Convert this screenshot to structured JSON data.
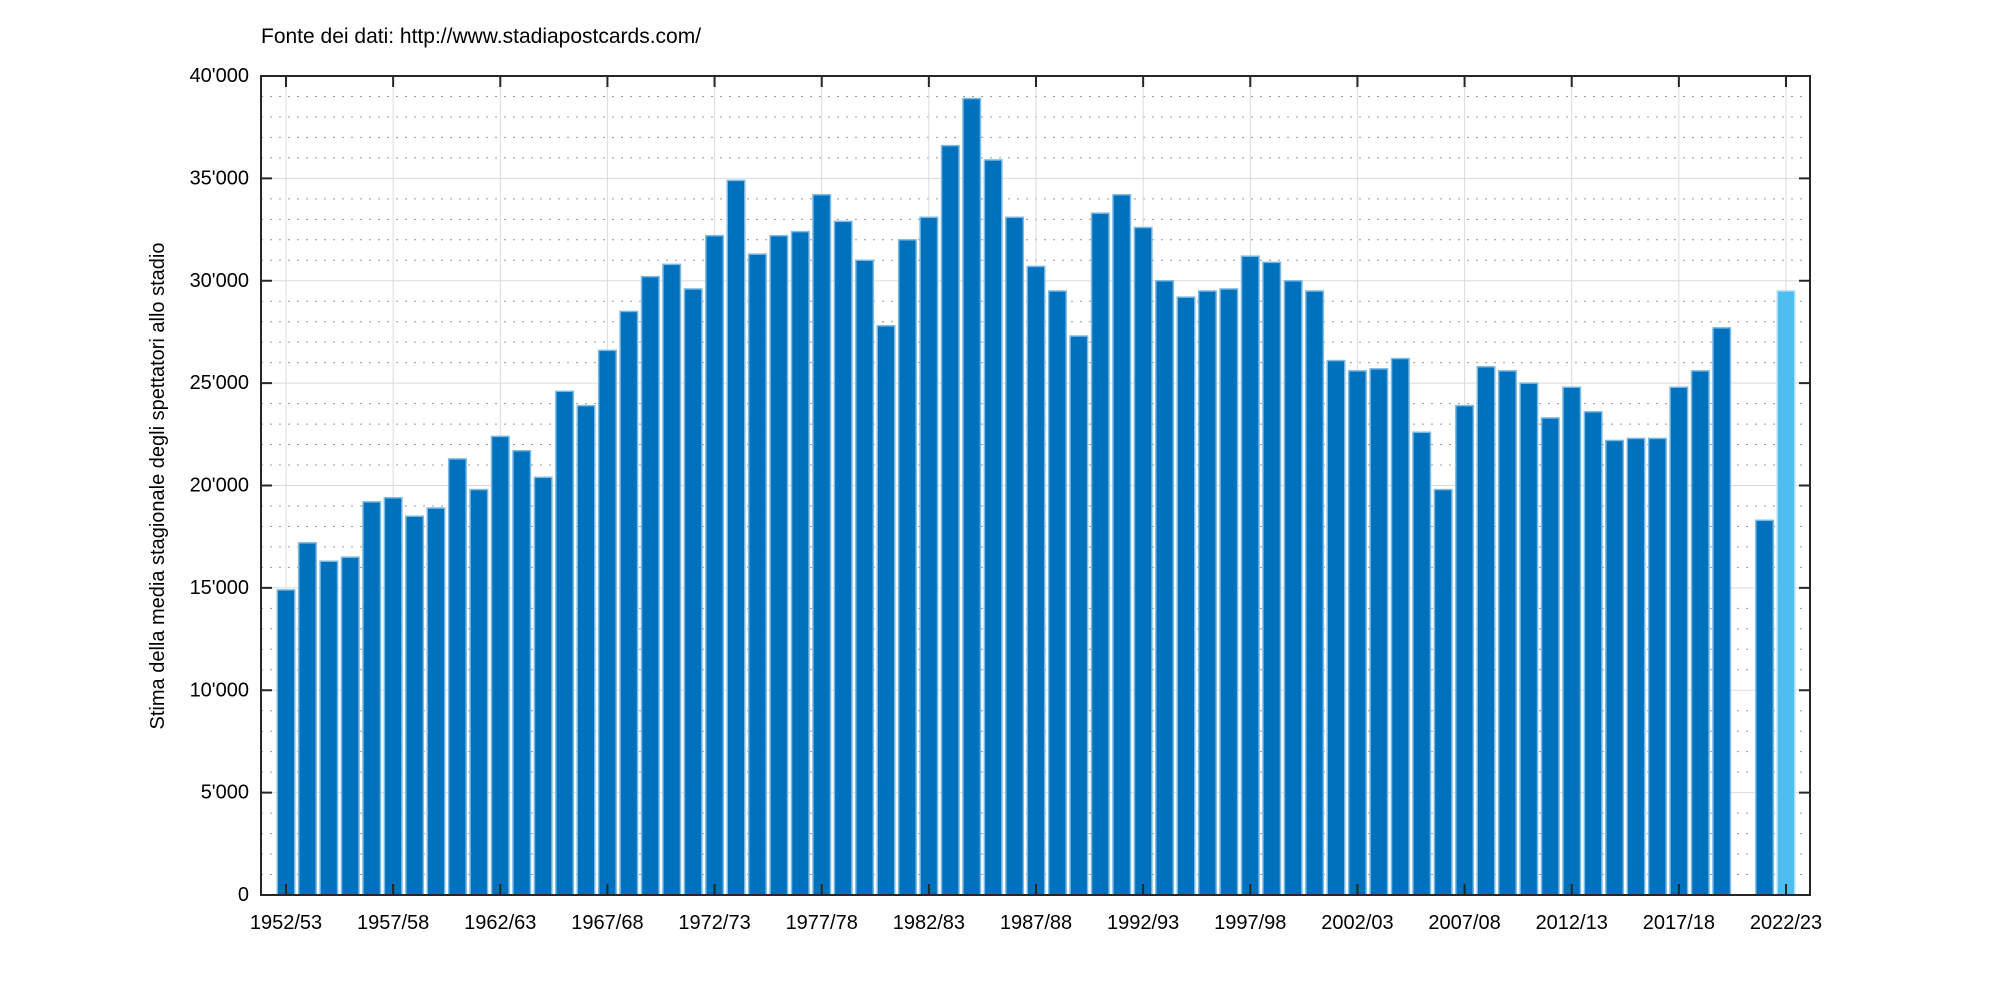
{
  "figure": {
    "background": "#FFFFFF",
    "kind": "matlab-style bar chart screenshot"
  },
  "chart_data": {
    "type": "bar",
    "title": "Fonte dei dati: http://www.stadiapostcards.com/",
    "xlabel": "",
    "ylabel": "Stima della media stagionale degli spettatori allo stadio",
    "ylim": [
      0,
      40000
    ],
    "ytick_interval": 5000,
    "yminor_interval": 1000,
    "ytick_labels": [
      "0",
      "5'000",
      "10'000",
      "15'000",
      "20'000",
      "25'000",
      "30'000",
      "35'000",
      "40'000"
    ],
    "xtick_every": 5,
    "xtick_labels": [
      "1952/53",
      "1957/58",
      "1962/63",
      "1967/68",
      "1972/73",
      "1977/78",
      "1982/83",
      "1987/88",
      "1992/93",
      "1997/98",
      "2002/03",
      "2007/08",
      "2012/13",
      "2017/18",
      "2022/23"
    ],
    "grid": "solid light major grid (x and y), dotted minor y-grid every 1000",
    "legend": "none",
    "categories": [
      "1952/53",
      "1953/54",
      "1954/55",
      "1955/56",
      "1956/57",
      "1957/58",
      "1958/59",
      "1959/60",
      "1960/61",
      "1961/62",
      "1962/63",
      "1963/64",
      "1964/65",
      "1965/66",
      "1966/67",
      "1967/68",
      "1968/69",
      "1969/70",
      "1970/71",
      "1971/72",
      "1972/73",
      "1973/74",
      "1974/75",
      "1975/76",
      "1976/77",
      "1977/78",
      "1978/79",
      "1979/80",
      "1980/81",
      "1981/82",
      "1982/83",
      "1983/84",
      "1984/85",
      "1985/86",
      "1986/87",
      "1987/88",
      "1988/89",
      "1989/90",
      "1990/91",
      "1991/92",
      "1992/93",
      "1993/94",
      "1994/95",
      "1995/96",
      "1996/97",
      "1997/98",
      "1998/99",
      "1999/00",
      "2000/01",
      "2001/02",
      "2002/03",
      "2003/04",
      "2004/05",
      "2005/06",
      "2006/07",
      "2007/08",
      "2008/09",
      "2009/10",
      "2010/11",
      "2011/12",
      "2012/13",
      "2013/14",
      "2014/15",
      "2015/16",
      "2016/17",
      "2017/18",
      "2018/19",
      "2019/20",
      "2020/21",
      "2021/22",
      "2022/23"
    ],
    "values": [
      14900,
      17200,
      16300,
      16500,
      19200,
      19400,
      18500,
      18900,
      21300,
      19800,
      22400,
      21700,
      20400,
      24600,
      23900,
      26600,
      28500,
      30200,
      30800,
      29600,
      32200,
      34900,
      31300,
      32200,
      32400,
      34200,
      32900,
      31000,
      27800,
      32000,
      33100,
      36600,
      38900,
      35900,
      33100,
      30700,
      29500,
      27300,
      33300,
      34200,
      32600,
      30000,
      29200,
      29500,
      29600,
      31200,
      30900,
      30000,
      29500,
      26100,
      25600,
      25700,
      26200,
      22600,
      19800,
      23900,
      25800,
      25600,
      25000,
      23300,
      24800,
      23600,
      22200,
      22300,
      22300,
      24800,
      25600,
      27700,
      null,
      18300,
      29500
    ],
    "missing_seasons": [
      "2020/21"
    ],
    "highlight": {
      "category": "2022/23",
      "index": 70,
      "note": "last bar drawn in light blue (estimate)"
    },
    "colors": {
      "bar": "#0072BD",
      "bar_edge": "#7DB9E1",
      "highlight_bar": "#4DBEEE",
      "highlight_edge": "#AADFF7",
      "grid_major": "#DBDBDB",
      "grid_minor": "#979797",
      "axis": "#262626",
      "text": "#000000"
    }
  }
}
